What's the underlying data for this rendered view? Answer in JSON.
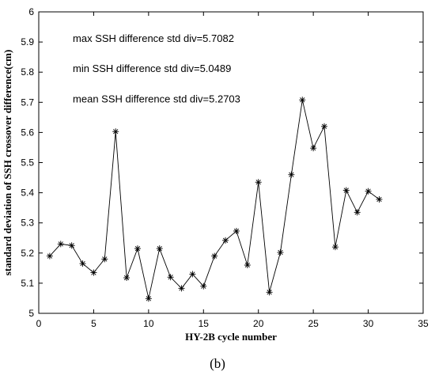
{
  "chart_data": {
    "type": "line",
    "xlabel": "HY-2B cycle number",
    "ylabel": "standard deviation of SSH crossover difference(cm)",
    "xlim": [
      0,
      35
    ],
    "ylim": [
      5,
      6
    ],
    "x_ticks": [
      "0",
      "5",
      "10",
      "15",
      "20",
      "25",
      "30",
      "35"
    ],
    "y_ticks": [
      "5",
      "5.1",
      "5.2",
      "5.3",
      "5.4",
      "5.5",
      "5.6",
      "5.7",
      "5.8",
      "5.9",
      "6"
    ],
    "marker": "asterisk",
    "series": [
      {
        "x": [
          1,
          2,
          3,
          4,
          5,
          6,
          7,
          8,
          9,
          10,
          11,
          12,
          13,
          14,
          15,
          16,
          17,
          18,
          19,
          20,
          21,
          22,
          23,
          24,
          25,
          26,
          27,
          28,
          29,
          30,
          31
        ],
        "values": [
          5.19,
          5.23,
          5.225,
          5.165,
          5.135,
          5.18,
          5.603,
          5.118,
          5.215,
          5.049,
          5.215,
          5.12,
          5.083,
          5.13,
          5.09,
          5.19,
          5.242,
          5.273,
          5.16,
          5.435,
          5.07,
          5.202,
          5.46,
          5.708,
          5.548,
          5.62,
          5.22,
          5.408,
          5.335,
          5.405,
          5.378
        ]
      }
    ],
    "annotations": [
      "max SSH difference std div=5.7082",
      "min SSH difference std div=5.0489",
      "mean SSH difference std div=5.2703"
    ],
    "grid": false
  },
  "caption": "(b)"
}
